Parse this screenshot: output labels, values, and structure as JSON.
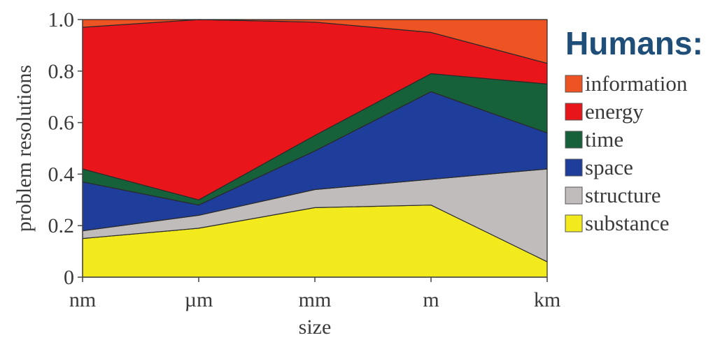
{
  "chart_data": {
    "type": "area",
    "stacked": true,
    "xlabel": "size",
    "ylabel": "problem resolutions",
    "x": [
      "nm",
      "µm",
      "mm",
      "m",
      "km"
    ],
    "ylim": [
      0,
      1.0
    ],
    "yticks": [
      "0",
      "0.2",
      "0.4",
      "0.6",
      "0.8",
      "1.0"
    ],
    "grid": false,
    "legend_title": "Humans:",
    "legend_position": "right",
    "series": [
      {
        "name": "substance",
        "color": "#f2ea1c",
        "values": [
          0.15,
          0.19,
          0.27,
          0.28,
          0.06
        ]
      },
      {
        "name": "structure",
        "color": "#c0bcbc",
        "values": [
          0.03,
          0.05,
          0.07,
          0.1,
          0.36
        ]
      },
      {
        "name": "space",
        "color": "#1f3d9a",
        "values": [
          0.19,
          0.04,
          0.15,
          0.34,
          0.14
        ]
      },
      {
        "name": "time",
        "color": "#16603a",
        "values": [
          0.05,
          0.02,
          0.06,
          0.07,
          0.19
        ]
      },
      {
        "name": "energy",
        "color": "#e8161a",
        "values": [
          0.55,
          0.7,
          0.44,
          0.16,
          0.08
        ]
      },
      {
        "name": "information",
        "color": "#ee5324",
        "values": [
          0.03,
          0.0,
          0.01,
          0.05,
          0.17
        ]
      }
    ],
    "legend_order": [
      "information",
      "energy",
      "time",
      "space",
      "structure",
      "substance"
    ]
  }
}
